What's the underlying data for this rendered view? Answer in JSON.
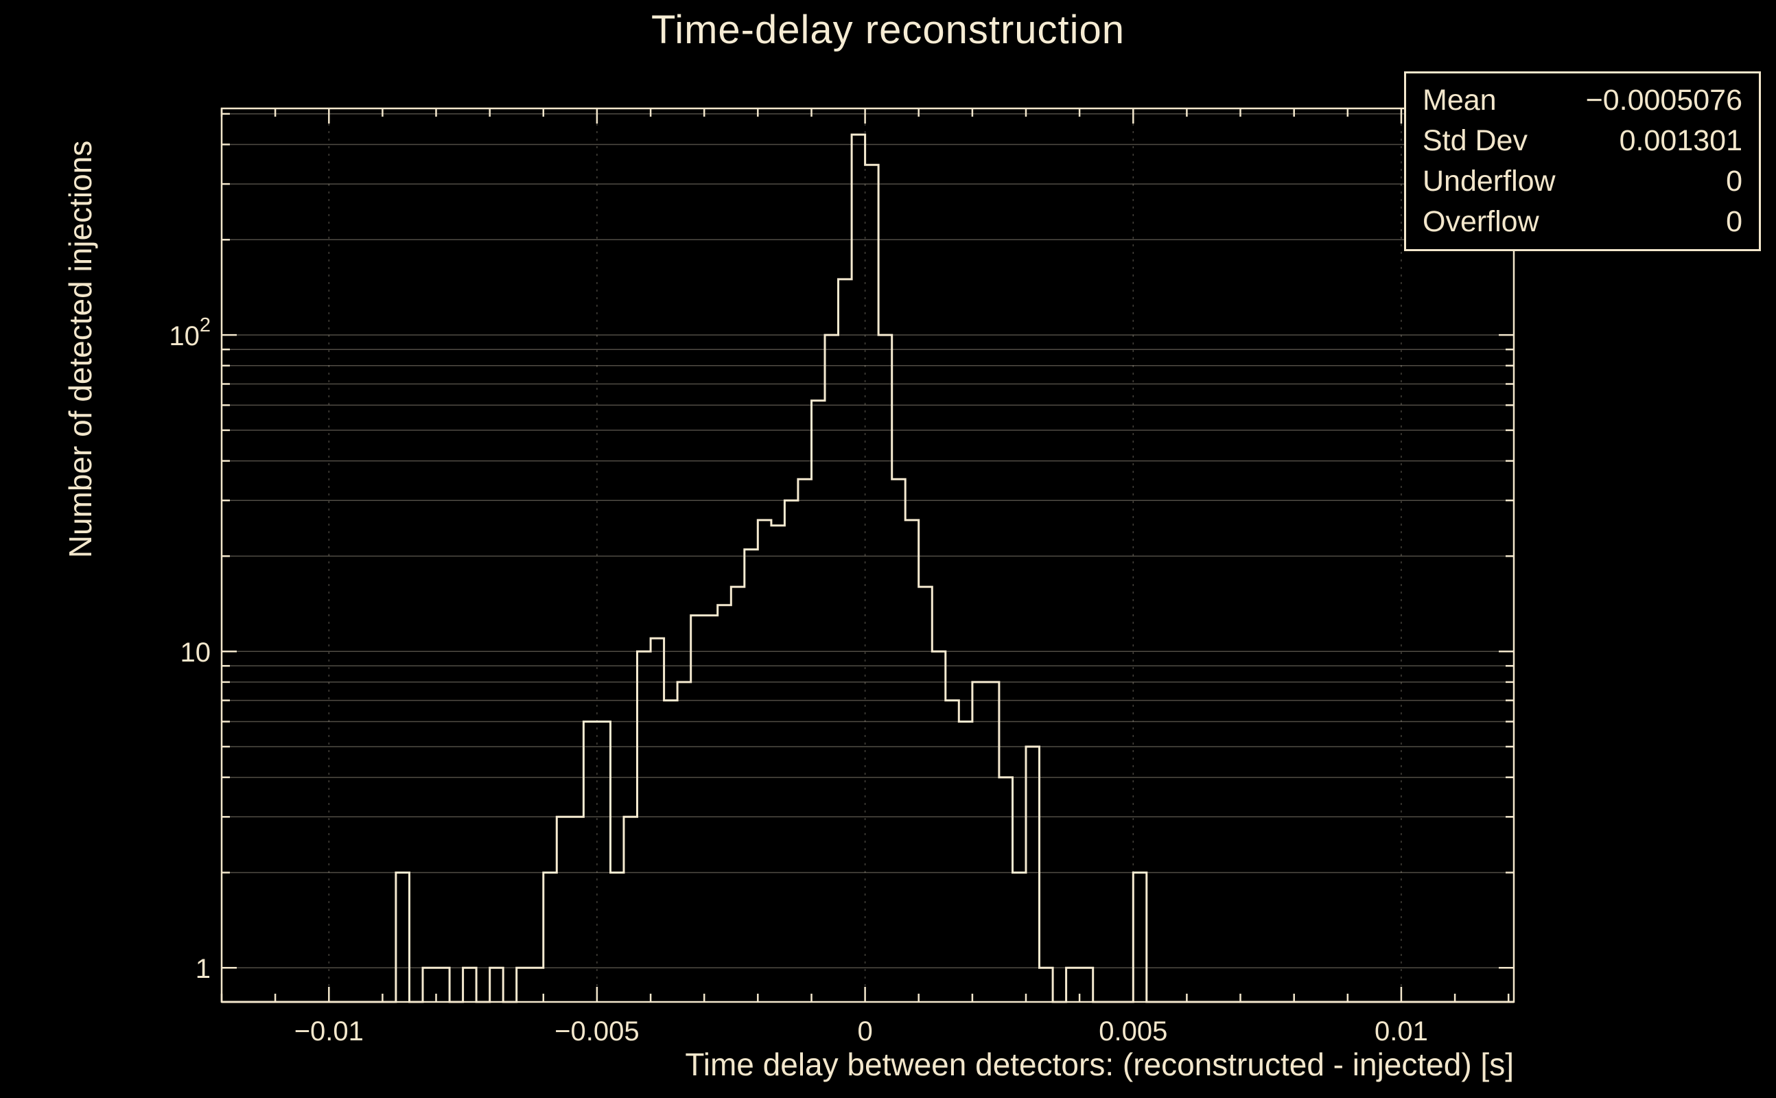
{
  "chart_data": {
    "type": "histogram",
    "title": "Time-delay reconstruction",
    "xlabel": "Time delay between detectors: (reconstructed - injected) [s]",
    "ylabel": "Number of detected injections",
    "x_scale": "linear",
    "y_scale": "log",
    "xlim": [
      -0.012,
      0.0121
    ],
    "ylim": [
      0.78,
      520
    ],
    "grid": "on",
    "x_ticks": [
      {
        "value": -0.01,
        "label": "−0.01"
      },
      {
        "value": -0.005,
        "label": "−0.005"
      },
      {
        "value": 0,
        "label": "0"
      },
      {
        "value": 0.005,
        "label": "0.005"
      },
      {
        "value": 0.01,
        "label": "0.01"
      }
    ],
    "x_minor_tick_step": 0.001,
    "y_ticks": [
      {
        "value": 1,
        "label": "1"
      },
      {
        "value": 10,
        "label": "10"
      },
      {
        "value": 100,
        "label": "10",
        "exponent": "2"
      }
    ],
    "bin_start": -0.009,
    "bin_width": 0.00025,
    "counts": [
      0,
      2,
      0,
      1,
      1,
      0,
      1,
      0,
      1,
      0,
      1,
      1,
      2,
      3,
      3,
      6,
      6,
      2,
      3,
      10,
      11,
      7,
      8,
      13,
      13,
      14,
      16,
      21,
      26,
      25,
      30,
      35,
      62,
      100,
      150,
      430,
      345,
      100,
      35,
      26,
      16,
      10,
      7,
      6,
      8,
      8,
      4,
      2,
      5,
      1,
      0,
      1,
      1,
      0,
      0,
      0,
      2,
      0
    ],
    "stats_box": {
      "rows": [
        {
          "label": "Mean",
          "value": "−0.0005076"
        },
        {
          "label": "Std Dev",
          "value": "0.001301"
        },
        {
          "label": "Underflow",
          "value": "0"
        },
        {
          "label": "Overflow",
          "value": "0"
        }
      ]
    },
    "colors": {
      "background": "#000000",
      "histogram_line": "#f5ead0",
      "text": "#f3e7cc"
    }
  }
}
